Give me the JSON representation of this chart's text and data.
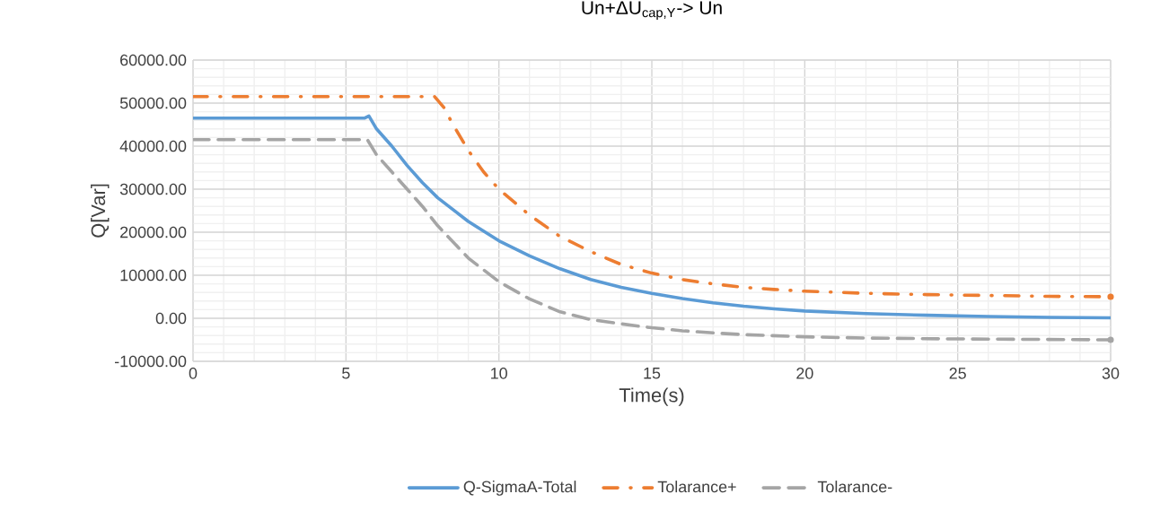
{
  "chart_data": {
    "type": "line",
    "title": "Un+ΔU$_{cap,Y}$-> Un",
    "xlabel": "Time(s)",
    "ylabel": "Q[Var]",
    "xlim": [
      0,
      30
    ],
    "xticks": [
      0,
      5,
      10,
      15,
      20,
      25,
      30
    ],
    "ylim": [
      -10000,
      60000
    ],
    "yticks": [
      {
        "value": -10000,
        "label": "-10000.00"
      },
      {
        "value": 0,
        "label": "0.00"
      },
      {
        "value": 10000,
        "label": "10000.00"
      },
      {
        "value": 20000,
        "label": "20000.00"
      },
      {
        "value": 30000,
        "label": "30000.00"
      },
      {
        "value": 40000,
        "label": "40000.00"
      },
      {
        "value": 50000,
        "label": "50000.00"
      },
      {
        "value": 60000,
        "label": "60000.00"
      }
    ],
    "grid": true,
    "legend": "bottom",
    "marker": "none",
    "series": [
      {
        "name": "Q-SigmaA-Total",
        "color": "#5b9bd5",
        "line_style": "solid",
        "x": [
          0,
          5.6,
          5.75,
          6,
          6.5,
          7,
          7.5,
          8,
          9,
          10,
          11,
          12,
          13,
          14,
          15,
          16,
          17,
          18,
          19,
          20,
          22,
          24,
          26,
          28,
          30
        ],
        "values": [
          46500,
          46500,
          47000,
          44000,
          40000,
          35500,
          31500,
          28000,
          22500,
          18000,
          14500,
          11500,
          9000,
          7200,
          5800,
          4600,
          3600,
          2800,
          2200,
          1700,
          1100,
          700,
          400,
          200,
          100
        ]
      },
      {
        "name": "Tolarance+",
        "color": "#ed7d31",
        "line_style": "dashdot",
        "x": [
          0,
          7.9,
          8.2,
          8.5,
          9,
          9.5,
          10,
          11,
          12,
          13,
          14,
          15,
          16,
          17,
          18,
          19,
          20,
          22,
          24,
          26,
          28,
          30
        ],
        "values": [
          51500,
          51500,
          49000,
          45000,
          39000,
          34000,
          30000,
          24000,
          19000,
          15500,
          12500,
          10500,
          9000,
          8000,
          7200,
          6700,
          6300,
          5800,
          5500,
          5300,
          5100,
          5000
        ]
      },
      {
        "name": "Tolarance-",
        "color": "#a5a5a5",
        "line_style": "dashed",
        "x": [
          0,
          5.7,
          6,
          6.5,
          7,
          7.5,
          8,
          9,
          10,
          11,
          12,
          13,
          14,
          15,
          16,
          17,
          18,
          20,
          22,
          25,
          30
        ],
        "values": [
          41500,
          41500,
          38000,
          34000,
          30000,
          26000,
          21500,
          14000,
          8500,
          4500,
          1500,
          -300,
          -1300,
          -2200,
          -2900,
          -3400,
          -3800,
          -4300,
          -4600,
          -4800,
          -5000
        ]
      }
    ]
  }
}
